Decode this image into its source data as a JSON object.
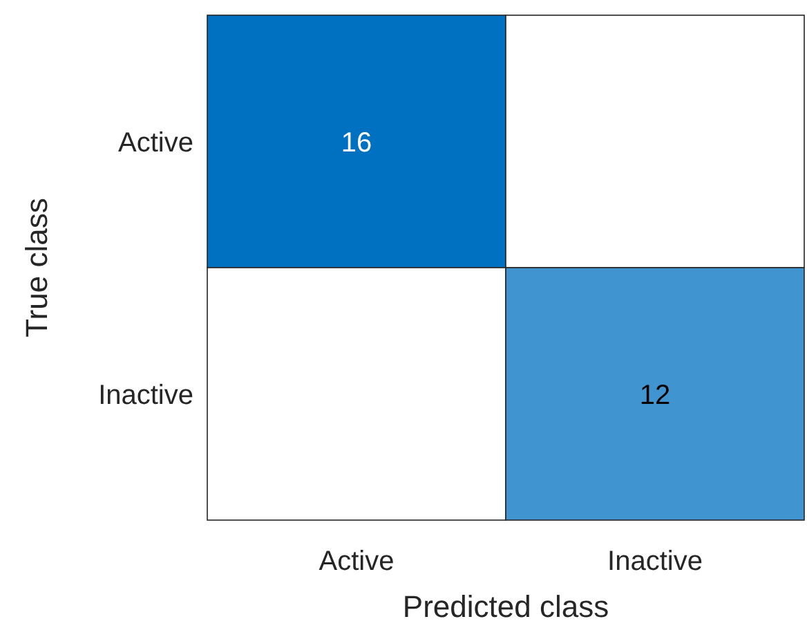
{
  "chart_data": {
    "type": "heatmap",
    "xlabel": "Predicted class",
    "ylabel": "True class",
    "categories": [
      "Active",
      "Inactive"
    ],
    "y_categories": [
      "Active",
      "Inactive"
    ],
    "cells": [
      [
        16,
        null
      ],
      [
        null,
        12
      ]
    ],
    "color": "#0070c0",
    "data_labels": true
  }
}
